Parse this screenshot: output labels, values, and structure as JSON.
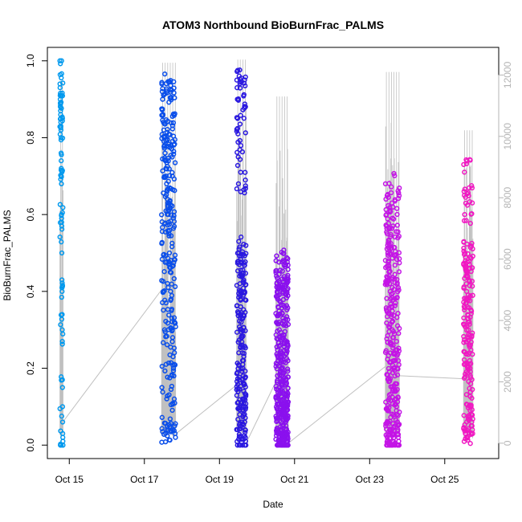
{
  "chart_data": {
    "type": "scatter",
    "title": "ATOM3 Northbound BioBurnFrac_PALMS",
    "xlabel": "Date",
    "ylabel": "BioBurnFrac_PALMS",
    "xlim": [
      "2017-10-14T10:00",
      "2017-10-26T10:30"
    ],
    "ylim": [
      -0.035,
      1.035
    ],
    "x_ticks": [
      {
        "date": "2017-10-15T00:00",
        "label": "Oct 15"
      },
      {
        "date": "2017-10-17T00:00",
        "label": "Oct 17"
      },
      {
        "date": "2017-10-19T00:00",
        "label": "Oct 19"
      },
      {
        "date": "2017-10-21T00:00",
        "label": "Oct 21"
      },
      {
        "date": "2017-10-23T00:00",
        "label": "Oct 23"
      },
      {
        "date": "2017-10-25T00:00",
        "label": "Oct 25"
      }
    ],
    "y_ticks": [
      0.0,
      0.2,
      0.4,
      0.6,
      0.8,
      1.0
    ],
    "y_tick_labels": [
      "0.0",
      "0.2",
      "0.4",
      "0.6",
      "0.8",
      "1.0"
    ],
    "y2_label": "",
    "y2_lim": [
      -500,
      12900
    ],
    "y2_ticks": [
      0,
      2000,
      4000,
      6000,
      8000,
      10000,
      12000
    ],
    "y2_tick_labels": [
      "0",
      "2000",
      "4000",
      "6000",
      "8000",
      "10000",
      "12000"
    ],
    "series": [
      {
        "role": "BioBurnFrac_PALMS points, colored by date",
        "flights": [
          {
            "start": "2017-10-14T18:00",
            "end": "2017-10-14T20:00",
            "color": "#0099ee",
            "n": 95,
            "v": [
              1.0,
              0.94,
              0.93,
              0.91,
              0.9,
              0.89,
              0.88,
              0.87,
              0.86,
              0.85,
              0.84,
              0.83,
              0.82,
              0.8,
              0.76,
              0.74,
              0.72,
              0.7,
              0.68,
              0.6,
              0.59,
              0.58,
              0.57,
              0.5,
              0.43,
              0.41,
              0.4,
              0.34,
              0.3,
              0.27,
              0.17,
              0.15,
              0.1,
              0.06,
              0.03,
              0.02,
              0.01,
              0.0
            ]
          },
          {
            "start": "2017-10-17T11:00",
            "end": "2017-10-17T20:00",
            "color": "#0a4eea",
            "n": 290,
            "v": [
              0.94,
              0.92,
              0.9,
              0.86,
              0.84,
              0.82,
              0.8,
              0.78,
              0.76,
              0.74,
              0.72,
              0.7,
              0.68,
              0.66,
              0.64,
              0.62,
              0.6,
              0.58,
              0.55,
              0.5,
              0.47,
              0.45,
              0.4,
              0.38,
              0.35,
              0.33,
              0.3,
              0.28,
              0.23,
              0.2,
              0.18,
              0.12,
              0.05,
              0.03,
              0.02
            ]
          },
          {
            "start": "2017-10-19T11:00",
            "end": "2017-10-19T17:00",
            "color": "#2a18e0",
            "n": 260,
            "v": [
              0.95,
              0.93,
              0.9,
              0.85,
              0.81,
              0.75,
              0.68,
              0.53,
              0.5,
              0.47,
              0.44,
              0.42,
              0.4,
              0.38,
              0.36,
              0.34,
              0.32,
              0.3,
              0.28,
              0.26,
              0.24,
              0.22,
              0.2,
              0.18,
              0.16,
              0.14,
              0.12,
              0.1,
              0.08,
              0.06,
              0.04,
              0.02,
              0.01,
              0.0
            ]
          },
          {
            "start": "2017-10-20T12:00",
            "end": "2017-10-20T20:00",
            "color": "#8a10ee",
            "n": 380,
            "v": [
              0.48,
              0.44,
              0.42,
              0.4,
              0.38,
              0.36,
              0.34,
              0.32,
              0.3,
              0.28,
              0.26,
              0.24,
              0.22,
              0.2,
              0.18,
              0.16,
              0.14,
              0.12,
              0.11,
              0.1,
              0.09,
              0.08,
              0.07,
              0.06,
              0.05,
              0.04,
              0.03,
              0.02,
              0.01,
              0.0
            ]
          },
          {
            "start": "2017-10-23T10:00",
            "end": "2017-10-23T19:00",
            "color": "#c414e6",
            "n": 320,
            "v": [
              0.68,
              0.64,
              0.6,
              0.57,
              0.55,
              0.52,
              0.5,
              0.48,
              0.46,
              0.44,
              0.42,
              0.4,
              0.38,
              0.36,
              0.34,
              0.32,
              0.3,
              0.28,
              0.26,
              0.24,
              0.22,
              0.2,
              0.18,
              0.16,
              0.14,
              0.12,
              0.1,
              0.08,
              0.06,
              0.04,
              0.02,
              0.01,
              0.0
            ]
          },
          {
            "start": "2017-10-25T12:00",
            "end": "2017-10-25T18:00",
            "color": "#f018c2",
            "n": 210,
            "v": [
              0.73,
              0.66,
              0.65,
              0.6,
              0.5,
              0.48,
              0.46,
              0.44,
              0.42,
              0.4,
              0.38,
              0.36,
              0.34,
              0.32,
              0.3,
              0.28,
              0.26,
              0.24,
              0.22,
              0.2,
              0.18,
              0.16,
              0.1,
              0.08,
              0.06,
              0.05,
              0.04,
              0.03
            ]
          }
        ]
      },
      {
        "role": "secondary gray trace, right axis",
        "color": "#c0c0c0",
        "peaks": [
          {
            "start": "2017-10-14T18:00",
            "end": "2017-10-14T20:00",
            "max": 11800
          },
          {
            "start": "2017-10-17T11:00",
            "end": "2017-10-17T20:00",
            "max": 12400
          },
          {
            "start": "2017-10-19T11:00",
            "end": "2017-10-19T17:00",
            "max": 12500
          },
          {
            "start": "2017-10-20T12:00",
            "end": "2017-10-20T20:00",
            "max": 11300
          },
          {
            "start": "2017-10-23T10:00",
            "end": "2017-10-23T19:00",
            "max": 12100
          },
          {
            "start": "2017-10-25T12:00",
            "end": "2017-10-25T18:00",
            "max": 10200
          }
        ],
        "transits": [
          {
            "from": "2017-10-14T20:00",
            "to": "2017-10-17T11:00",
            "v0": 700,
            "v1": 5000
          },
          {
            "from": "2017-10-17T20:00",
            "to": "2017-10-19T11:00",
            "v0": 300,
            "v1": 1900
          },
          {
            "from": "2017-10-19T17:00",
            "to": "2017-10-20T12:00",
            "v0": 0,
            "v1": 2000
          },
          {
            "from": "2017-10-20T20:00",
            "to": "2017-10-23T10:00",
            "v0": 0,
            "v1": 2500
          },
          {
            "from": "2017-10-23T19:00",
            "to": "2017-10-25T12:00",
            "v0": 2200,
            "v1": 2100
          }
        ]
      }
    ],
    "grid": false,
    "legend": "none"
  }
}
